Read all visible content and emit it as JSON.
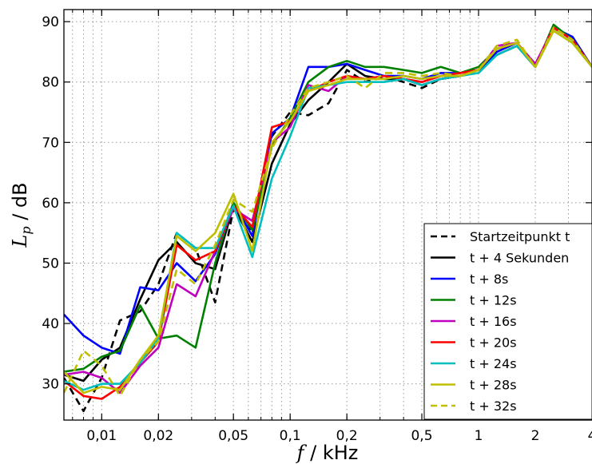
{
  "chart_data": {
    "type": "line",
    "xlabel": {
      "var": "f",
      "unit": " / kHz"
    },
    "ylabel": {
      "var": "L",
      "sub": "p",
      "unit": "  / dB"
    },
    "xscale": "log",
    "xlim": [
      0.0063,
      4.0
    ],
    "ylim": [
      24,
      92
    ],
    "grid": true,
    "x_ticks": [
      {
        "value": 0.01,
        "label": "0,01"
      },
      {
        "value": 0.02,
        "label": "0,02"
      },
      {
        "value": 0.05,
        "label": "0,05"
      },
      {
        "value": 0.1,
        "label": "0,1"
      },
      {
        "value": 0.2,
        "label": "0,2"
      },
      {
        "value": 0.5,
        "label": "0,5"
      },
      {
        "value": 1,
        "label": "1"
      },
      {
        "value": 2,
        "label": "2"
      },
      {
        "value": 4,
        "label": "4"
      }
    ],
    "y_ticks": [
      {
        "value": 30,
        "label": "30"
      },
      {
        "value": 40,
        "label": "40"
      },
      {
        "value": 50,
        "label": "50"
      },
      {
        "value": 60,
        "label": "60"
      },
      {
        "value": 70,
        "label": "70"
      },
      {
        "value": 80,
        "label": "80"
      },
      {
        "value": 90,
        "label": "90"
      }
    ],
    "legend_position": "lower-right",
    "x": [
      0.0063,
      0.008,
      0.01,
      0.0125,
      0.016,
      0.02,
      0.025,
      0.0315,
      0.04,
      0.05,
      0.063,
      0.08,
      0.1,
      0.125,
      0.16,
      0.2,
      0.25,
      0.315,
      0.4,
      0.5,
      0.63,
      0.8,
      1.0,
      1.25,
      1.6,
      2.0,
      2.5,
      3.15,
      4.0
    ],
    "series": [
      {
        "name": "Startzeitpunkt t",
        "color": "#000000",
        "dash": "dashed",
        "values": [
          31.0,
          25.5,
          31.0,
          40.5,
          42.0,
          46.5,
          55.0,
          52.5,
          43.5,
          59.0,
          55.0,
          71.0,
          75.0,
          74.5,
          76.5,
          82.0,
          80.0,
          81.0,
          80.0,
          79.0,
          80.5,
          81.0,
          82.0,
          84.5,
          86.0,
          82.5,
          89.0,
          87.0,
          82.5
        ]
      },
      {
        "name": "t + 4 Sekunden",
        "color": "#000000",
        "dash": "solid",
        "values": [
          31.5,
          30.5,
          34.0,
          36.0,
          44.0,
          50.5,
          53.5,
          50.0,
          49.0,
          59.5,
          53.5,
          66.5,
          73.0,
          77.0,
          80.0,
          83.0,
          81.0,
          80.5,
          80.5,
          79.5,
          80.5,
          81.0,
          82.0,
          84.5,
          86.0,
          82.5,
          89.0,
          87.0,
          82.5
        ]
      },
      {
        "name": "t + 8s",
        "color": "#0000ff",
        "dash": "solid",
        "values": [
          41.5,
          38.0,
          36.0,
          35.0,
          46.0,
          45.5,
          50.0,
          47.0,
          51.5,
          60.0,
          54.5,
          71.5,
          74.0,
          82.5,
          82.5,
          83.0,
          82.0,
          81.0,
          81.0,
          80.5,
          81.5,
          81.5,
          82.0,
          85.0,
          86.5,
          82.5,
          89.0,
          87.5,
          82.5
        ]
      },
      {
        "name": "t + 12s",
        "color": "#008000",
        "dash": "solid",
        "values": [
          32.0,
          32.5,
          34.5,
          35.5,
          43.0,
          37.5,
          38.0,
          36.0,
          50.0,
          60.0,
          55.5,
          69.5,
          74.0,
          80.0,
          82.5,
          83.5,
          82.5,
          82.5,
          82.0,
          81.5,
          82.5,
          81.5,
          82.5,
          85.5,
          86.5,
          82.5,
          89.5,
          87.0,
          82.5
        ]
      },
      {
        "name": "t + 16s",
        "color": "#bf00bf",
        "dash": "solid",
        "values": [
          31.5,
          32.0,
          31.0,
          28.5,
          33.0,
          36.0,
          46.5,
          44.5,
          52.0,
          59.0,
          57.0,
          70.0,
          72.5,
          79.5,
          78.5,
          81.0,
          80.5,
          81.0,
          80.5,
          80.0,
          81.0,
          81.5,
          82.0,
          86.0,
          86.5,
          83.0,
          89.0,
          87.0,
          82.5
        ]
      },
      {
        "name": "t + 20s",
        "color": "#ff0000",
        "dash": "solid",
        "values": [
          30.5,
          28.0,
          27.5,
          29.5,
          33.5,
          37.0,
          53.0,
          50.5,
          52.0,
          59.5,
          56.0,
          72.5,
          73.5,
          78.5,
          80.0,
          81.0,
          80.5,
          81.0,
          80.5,
          80.0,
          81.0,
          81.5,
          82.0,
          85.5,
          86.5,
          82.5,
          89.0,
          87.0,
          82.5
        ]
      },
      {
        "name": "t + 24s",
        "color": "#00bfbf",
        "dash": "solid",
        "values": [
          30.5,
          29.0,
          30.0,
          30.0,
          33.5,
          37.5,
          55.0,
          52.5,
          52.5,
          59.5,
          51.0,
          64.0,
          71.0,
          79.0,
          79.5,
          80.0,
          80.0,
          80.0,
          80.5,
          79.5,
          80.5,
          81.0,
          81.5,
          84.5,
          86.0,
          82.5,
          88.5,
          86.5,
          82.5
        ]
      },
      {
        "name": "t + 28s",
        "color": "#bfbf00",
        "dash": "solid",
        "values": [
          32.0,
          28.5,
          29.5,
          29.0,
          34.0,
          38.0,
          54.5,
          52.0,
          55.0,
          61.5,
          52.0,
          70.0,
          73.5,
          78.5,
          79.5,
          80.5,
          80.5,
          80.5,
          81.0,
          80.5,
          81.0,
          81.0,
          82.0,
          85.5,
          86.5,
          82.5,
          88.5,
          86.5,
          82.5
        ]
      },
      {
        "name": "t + 32s",
        "color": "#bfbf00",
        "dash": "dashed",
        "values": [
          28.5,
          35.5,
          33.0,
          28.0,
          34.0,
          37.0,
          49.0,
          46.5,
          53.0,
          60.5,
          58.5,
          69.0,
          74.5,
          79.0,
          80.0,
          81.0,
          79.0,
          81.5,
          81.5,
          81.0,
          81.5,
          81.0,
          82.0,
          86.0,
          87.0,
          82.5,
          89.0,
          87.0,
          82.5
        ]
      }
    ]
  }
}
